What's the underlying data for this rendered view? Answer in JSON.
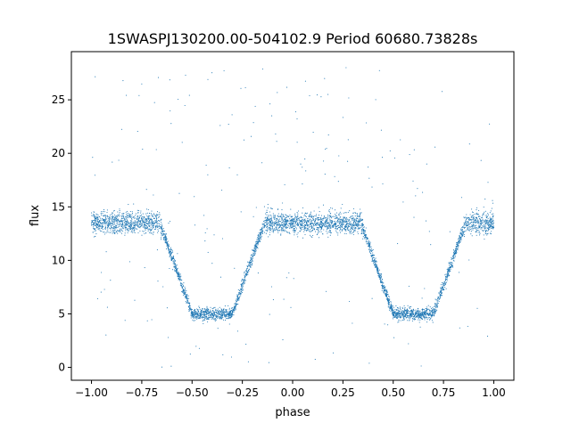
{
  "chart_data": {
    "type": "scatter",
    "title": "1SWASPJ130200.00-504102.9 Period 60680.73828s",
    "xlabel": "phase",
    "ylabel": "flux",
    "xlim": [
      -1.1,
      1.1
    ],
    "ylim": [
      -1.2,
      29.5
    ],
    "xticks": [
      -1.0,
      -0.75,
      -0.5,
      -0.25,
      0.0,
      0.25,
      0.5,
      0.75,
      1.0
    ],
    "xtick_labels": [
      "−1.00",
      "−0.75",
      "−0.50",
      "−0.25",
      "0.00",
      "0.25",
      "0.50",
      "0.75",
      "1.00"
    ],
    "yticks": [
      0,
      5,
      10,
      15,
      20,
      25
    ],
    "ytick_labels": [
      "0",
      "5",
      "10",
      "15",
      "20",
      "25"
    ],
    "grid": false,
    "series": [
      {
        "color": "#1f77b4",
        "baseline_flux": 13.5,
        "scatter_spread": 1.3,
        "eclipse_floor_flux": 5.0,
        "eclipses": [
          {
            "center_phase": -0.4,
            "ingress_start": -0.66,
            "flat_start": -0.5,
            "flat_end": -0.3,
            "egress_end": -0.14
          },
          {
            "center_phase": 0.6,
            "ingress_start": 0.34,
            "flat_start": 0.5,
            "flat_end": 0.7,
            "egress_end": 0.86
          }
        ],
        "outlier_range": [
          0,
          28
        ],
        "sample_points": [
          {
            "x": -1.0,
            "y": 13.5
          },
          {
            "x": -0.75,
            "y": 13.4
          },
          {
            "x": -0.6,
            "y": 11.0
          },
          {
            "x": -0.5,
            "y": 5.2
          },
          {
            "x": -0.4,
            "y": 5.0
          },
          {
            "x": -0.3,
            "y": 5.3
          },
          {
            "x": -0.2,
            "y": 11.0
          },
          {
            "x": 0.0,
            "y": 13.5
          },
          {
            "x": 0.25,
            "y": 13.4
          },
          {
            "x": 0.4,
            "y": 11.0
          },
          {
            "x": 0.5,
            "y": 5.2
          },
          {
            "x": 0.6,
            "y": 5.0
          },
          {
            "x": 0.7,
            "y": 5.3
          },
          {
            "x": 0.8,
            "y": 11.0
          },
          {
            "x": 1.0,
            "y": 13.5
          }
        ]
      }
    ]
  }
}
